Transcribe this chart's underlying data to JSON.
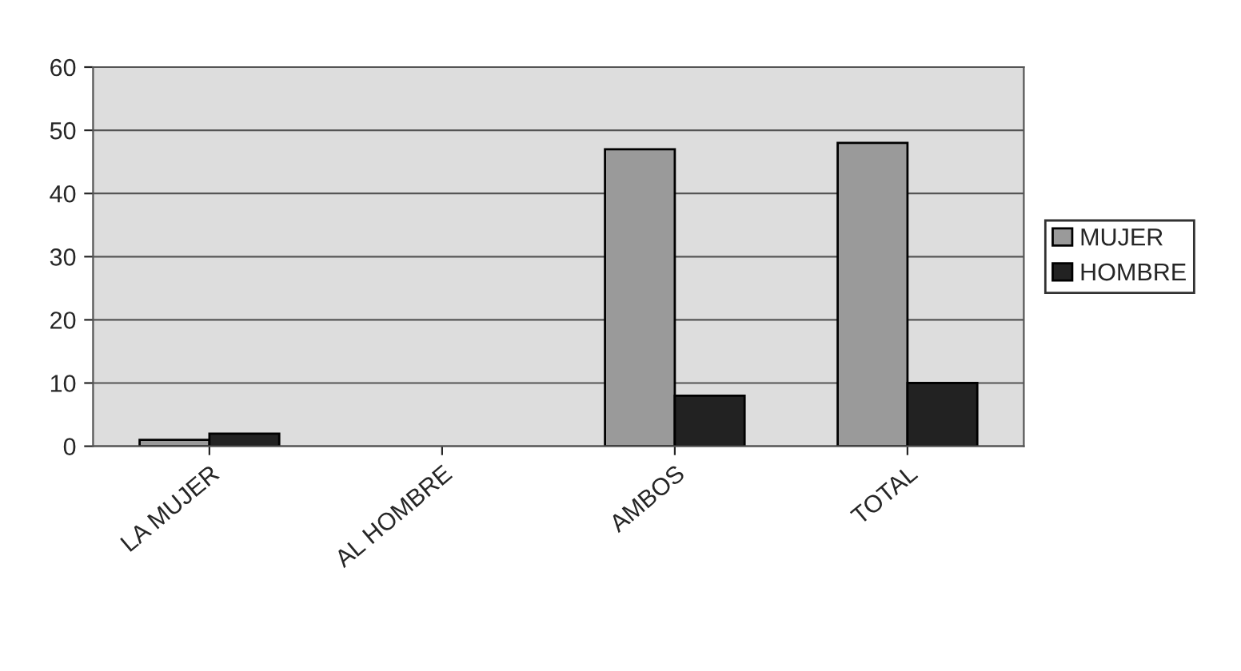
{
  "chart_data": {
    "type": "bar",
    "categories": [
      "LA MUJER",
      "AL HOMBRE",
      "AMBOS",
      "TOTAL"
    ],
    "series": [
      {
        "name": "MUJER",
        "color": "#9a9a9a",
        "values": [
          1,
          null,
          47,
          48
        ]
      },
      {
        "name": "HOMBRE",
        "color": "#222222",
        "values": [
          2,
          null,
          8,
          10
        ]
      }
    ],
    "ylim": [
      0,
      60
    ],
    "yticks": [
      0,
      10,
      20,
      30,
      40,
      50,
      60
    ],
    "grid": "y",
    "legend": "right"
  }
}
